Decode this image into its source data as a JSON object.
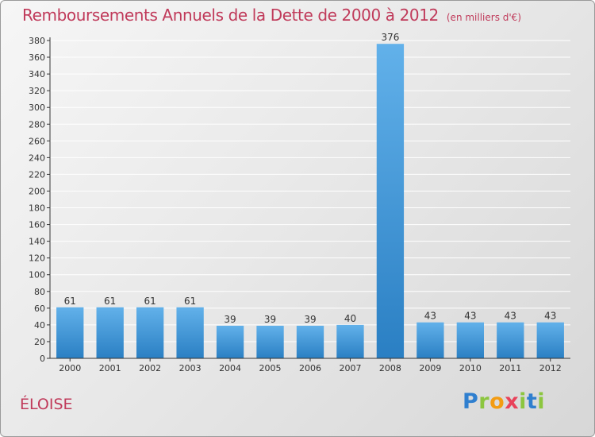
{
  "title": "Remboursements Annuels de la Dette de 2000 à 2012",
  "subtitle": "(en milliers d'€)",
  "commune": "ÉLOISE",
  "brand": {
    "letters": [
      "P",
      "r",
      "o",
      "x",
      "i",
      "t",
      "i"
    ],
    "colors": [
      "#2f7fcf",
      "#8cc63f",
      "#f39c12",
      "#e8425a",
      "#8cc63f",
      "#2f7fcf",
      "#8cc63f"
    ]
  },
  "colors": {
    "title": "#c03a5a",
    "bar_light": "#62b1ea",
    "bar_dark": "#2a7fc3",
    "grid": "#ffffff"
  },
  "chart_data": {
    "type": "bar",
    "categories": [
      "2000",
      "2001",
      "2002",
      "2003",
      "2004",
      "2005",
      "2006",
      "2007",
      "2008",
      "2009",
      "2010",
      "2011",
      "2012"
    ],
    "values": [
      61,
      61,
      61,
      61,
      39,
      39,
      39,
      40,
      376,
      43,
      43,
      43,
      43
    ],
    "data_labels": [
      "61",
      "61",
      "61",
      "61",
      "39",
      "39",
      "39",
      "40",
      "376",
      "43",
      "43",
      "43",
      "43"
    ],
    "ylim": [
      0,
      380
    ],
    "yticks": [
      0,
      20,
      40,
      60,
      80,
      100,
      120,
      140,
      160,
      180,
      200,
      220,
      240,
      260,
      280,
      300,
      320,
      340,
      360,
      380
    ],
    "grid": true,
    "legend": "none"
  }
}
